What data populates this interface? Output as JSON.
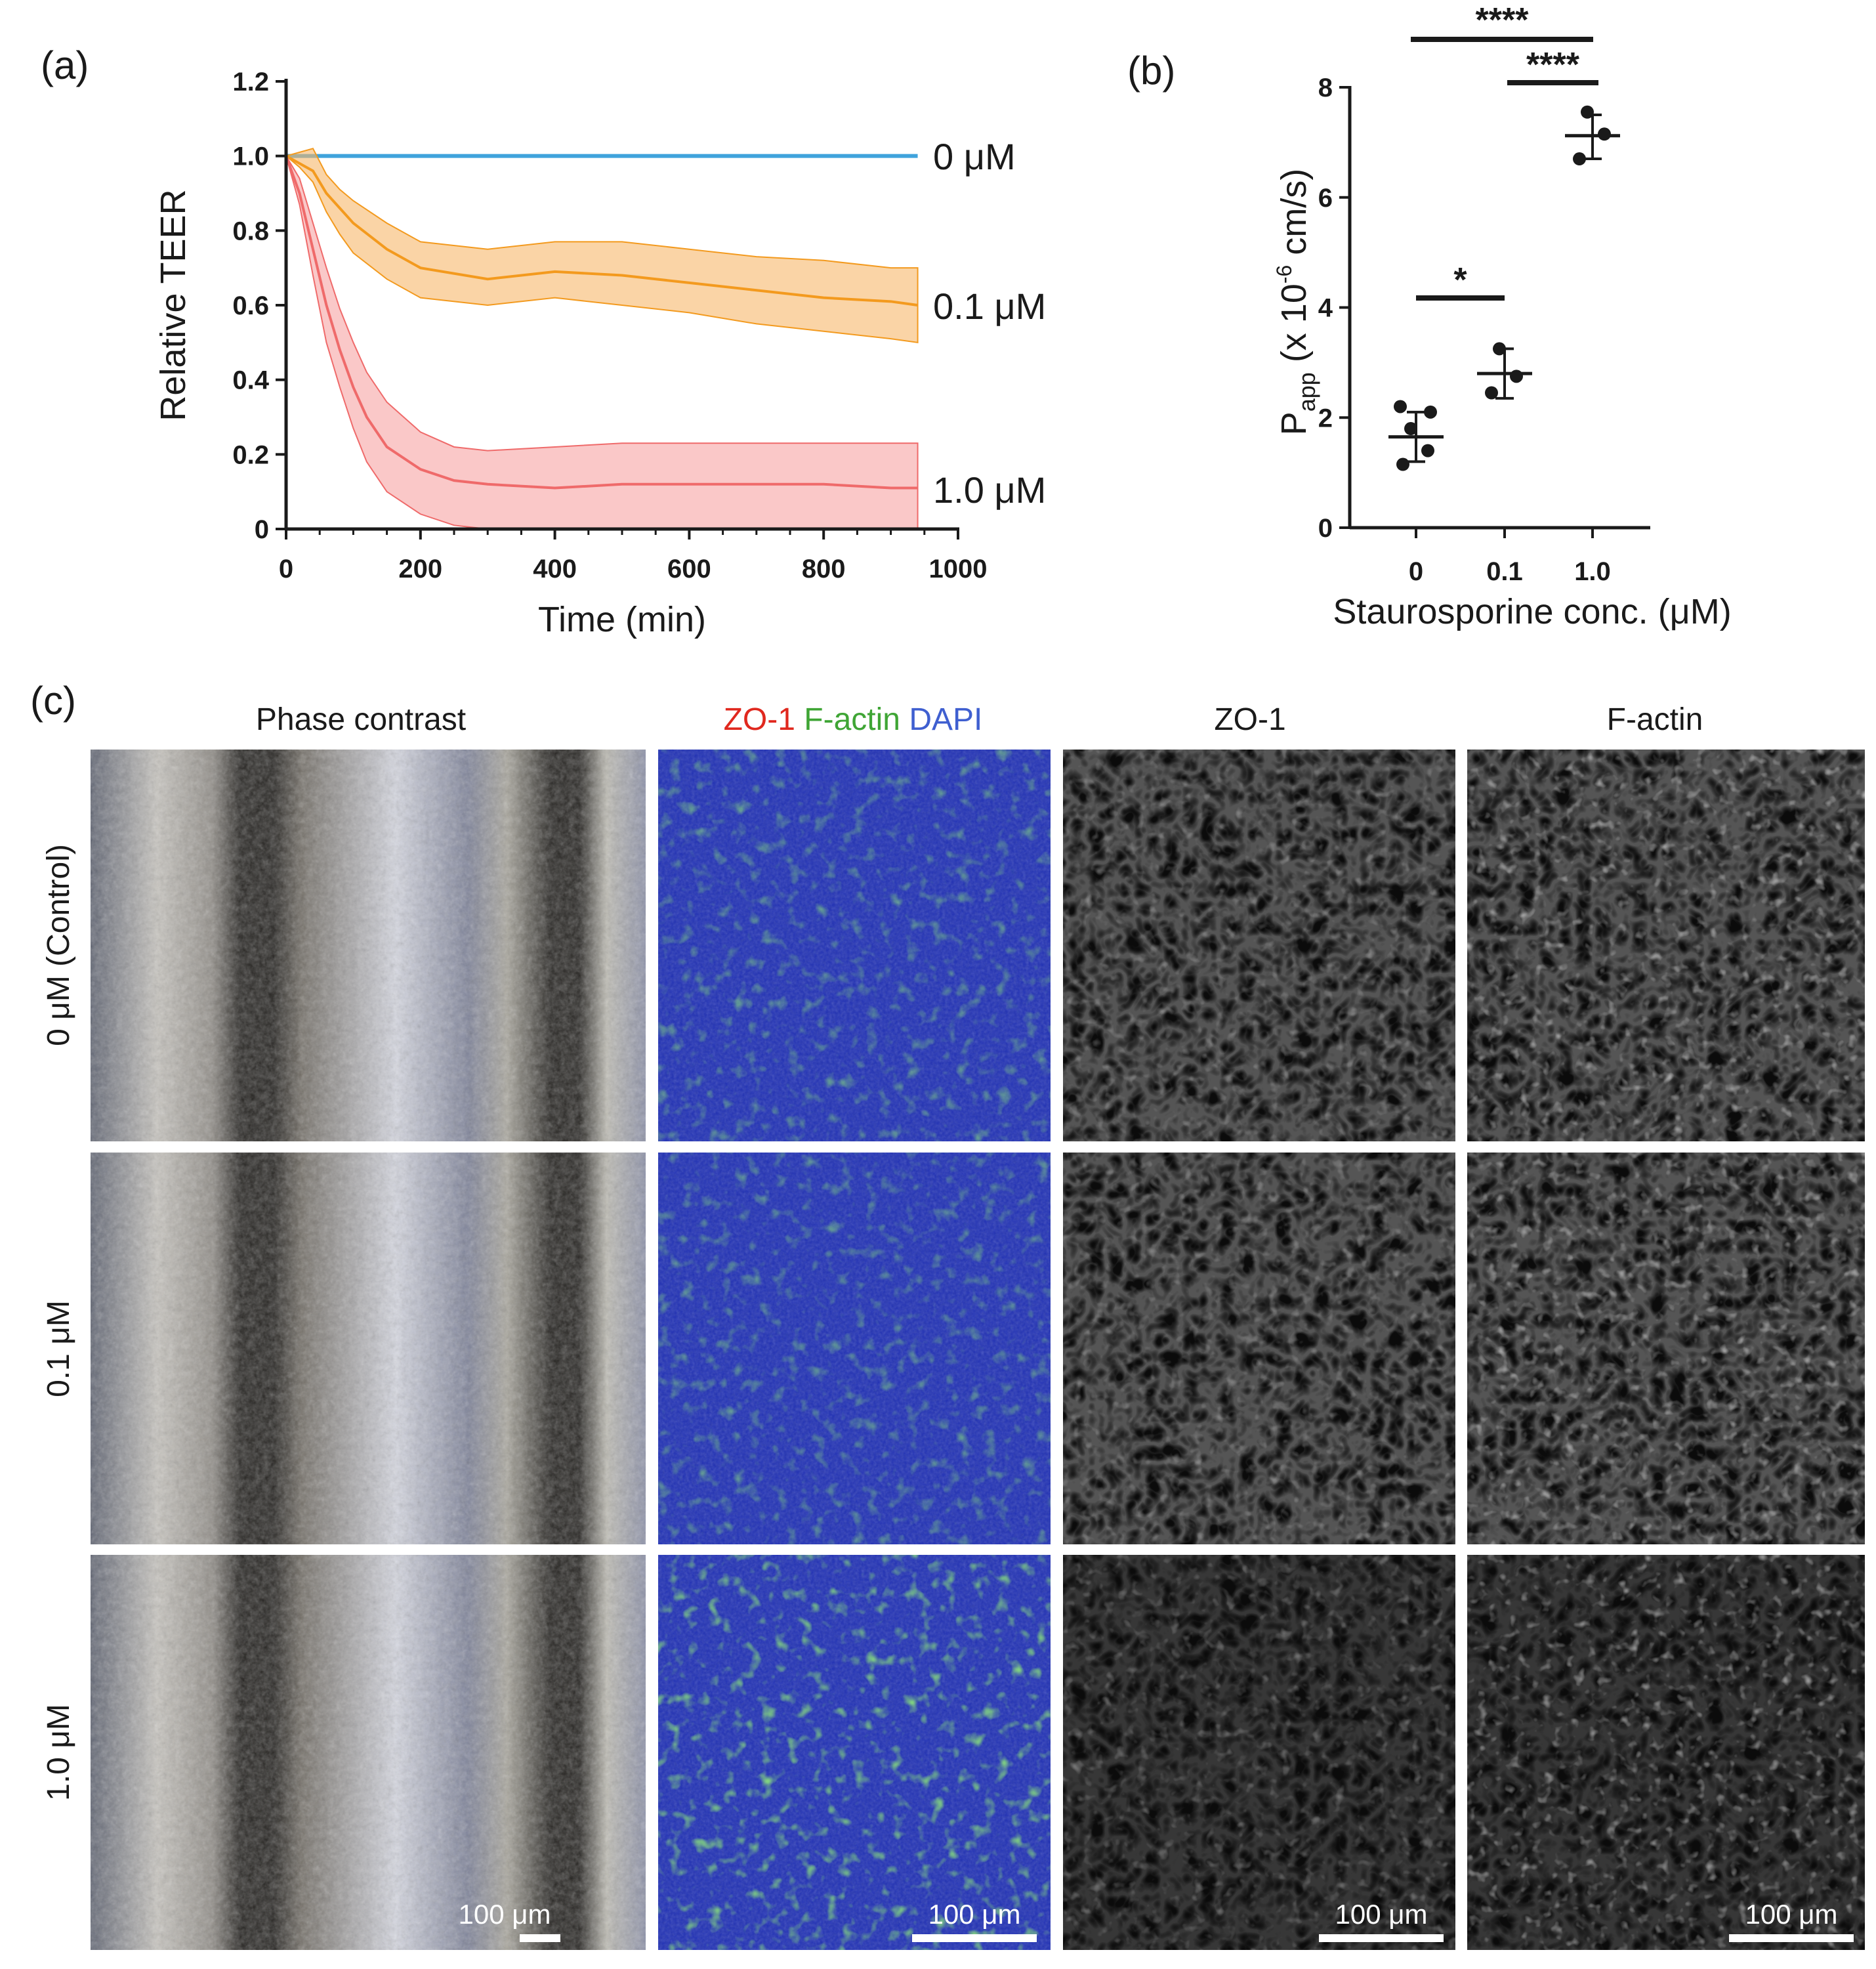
{
  "colors": {
    "zero": "#3fa3dc",
    "low": "#f39a1e",
    "low_band": "#f7b86a",
    "high": "#ef6a6a",
    "high_band": "#f6a3a3",
    "dapi_blue": "#3f5fd0",
    "zo1_red": "#e0281e",
    "factin_green": "#3fa535"
  },
  "panel_a": {
    "tag": "(a)",
    "chart_data": {
      "type": "line",
      "xlabel": "Time (min)",
      "ylabel": "Relative TEER",
      "xlim": [
        0,
        1000
      ],
      "ylim": [
        0,
        1.2
      ],
      "x_ticks": [
        "0",
        "200",
        "400",
        "600",
        "800",
        "1000"
      ],
      "y_ticks": [
        "0",
        "0.2",
        "0.4",
        "0.6",
        "0.8",
        "1.0",
        "1.2"
      ],
      "series": [
        {
          "name": "0 μM",
          "x": [
            0,
            940
          ],
          "mean": [
            1.0,
            1.0
          ],
          "lower": [
            1.0,
            1.0
          ],
          "upper": [
            1.0,
            1.0
          ]
        },
        {
          "name": "0.1 μM",
          "x": [
            0,
            20,
            40,
            60,
            80,
            100,
            150,
            200,
            300,
            400,
            500,
            600,
            700,
            800,
            900,
            940
          ],
          "mean": [
            1.0,
            0.98,
            0.96,
            0.9,
            0.86,
            0.82,
            0.75,
            0.7,
            0.67,
            0.69,
            0.68,
            0.66,
            0.64,
            0.62,
            0.61,
            0.6
          ],
          "lower": [
            1.0,
            0.97,
            0.93,
            0.85,
            0.79,
            0.74,
            0.67,
            0.62,
            0.6,
            0.62,
            0.6,
            0.58,
            0.55,
            0.53,
            0.51,
            0.5
          ],
          "upper": [
            1.0,
            1.01,
            1.02,
            0.95,
            0.91,
            0.88,
            0.82,
            0.77,
            0.75,
            0.77,
            0.77,
            0.75,
            0.73,
            0.72,
            0.7,
            0.7
          ]
        },
        {
          "name": "1.0 μM",
          "x": [
            0,
            20,
            40,
            60,
            80,
            100,
            120,
            150,
            200,
            250,
            300,
            400,
            500,
            600,
            700,
            800,
            900,
            940
          ],
          "mean": [
            1.0,
            0.9,
            0.75,
            0.6,
            0.48,
            0.38,
            0.3,
            0.22,
            0.16,
            0.13,
            0.12,
            0.11,
            0.12,
            0.12,
            0.12,
            0.12,
            0.11,
            0.11
          ],
          "lower": [
            1.0,
            0.87,
            0.68,
            0.5,
            0.38,
            0.27,
            0.18,
            0.1,
            0.04,
            0.01,
            0.0,
            0.0,
            0.0,
            0.0,
            0.0,
            0.0,
            0.0,
            0.0
          ],
          "upper": [
            1.0,
            0.94,
            0.82,
            0.7,
            0.59,
            0.5,
            0.42,
            0.34,
            0.26,
            0.22,
            0.21,
            0.22,
            0.23,
            0.23,
            0.23,
            0.23,
            0.23,
            0.23
          ]
        }
      ],
      "labels": [
        "0 μM",
        "0.1 μM",
        "1.0 μM"
      ]
    }
  },
  "panel_b": {
    "tag": "(b)",
    "chart_data": {
      "type": "scatter",
      "xlabel": "Staurosporine conc. (μM)",
      "ylabel_main": "P",
      "ylabel_sub": "app",
      "ylabel_pre": " (x 10",
      "ylabel_sup": "-6",
      "ylabel_post": " cm/s)",
      "categories": [
        "0",
        "0.1",
        "1.0"
      ],
      "ylim": [
        0,
        8
      ],
      "y_ticks": [
        "0",
        "2",
        "4",
        "6",
        "8"
      ],
      "groups": [
        {
          "name": "0",
          "points": [
            1.15,
            1.4,
            1.8,
            2.1,
            2.2
          ],
          "mean": 1.65,
          "sd_low": 1.2,
          "sd_high": 2.1
        },
        {
          "name": "0.1",
          "points": [
            2.45,
            2.75,
            3.25
          ],
          "mean": 2.8,
          "sd_low": 2.35,
          "sd_high": 3.25
        },
        {
          "name": "1.0",
          "points": [
            6.7,
            7.15,
            7.55
          ],
          "mean": 7.12,
          "sd_low": 6.7,
          "sd_high": 7.5
        }
      ],
      "significance": [
        {
          "from": "0",
          "to": "1.0",
          "label": "****"
        },
        {
          "from": "0.1",
          "to": "1.0",
          "label": "****"
        },
        {
          "from": "0",
          "to": "0.1",
          "label": "*"
        }
      ]
    }
  },
  "panel_c": {
    "tag": "(c)",
    "column_headers": [
      "Phase contrast",
      "ZO-1",
      "F-actin",
      "DAPI",
      "ZO-1",
      "F-actin"
    ],
    "row_headers": [
      "0 μM (Control)",
      "0.1 μM",
      "1.0 μM"
    ],
    "scale_bar": "100 μm"
  }
}
